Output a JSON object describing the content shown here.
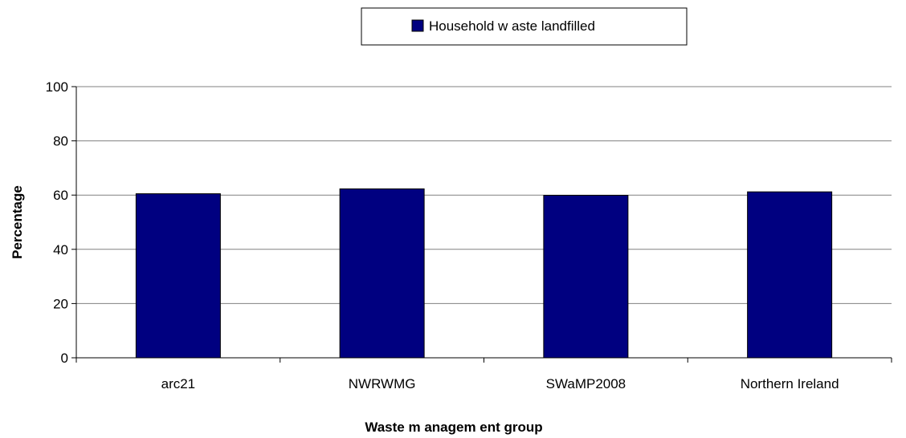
{
  "chart_data": {
    "type": "bar",
    "categories": [
      "arc21",
      "NWRWMG",
      "SWaMP2008",
      "Northern Ireland"
    ],
    "series": [
      {
        "name": "Household w aste landfilled",
        "values": [
          60.5,
          62.3,
          59.9,
          61.2
        ],
        "color": "#000080"
      }
    ],
    "xlabel": "Waste m anagem ent group",
    "ylabel": "Percentage",
    "ylim": [
      0,
      100
    ],
    "yticks": [
      0,
      20,
      40,
      60,
      80,
      100
    ],
    "grid": true,
    "legend": "top-center"
  }
}
